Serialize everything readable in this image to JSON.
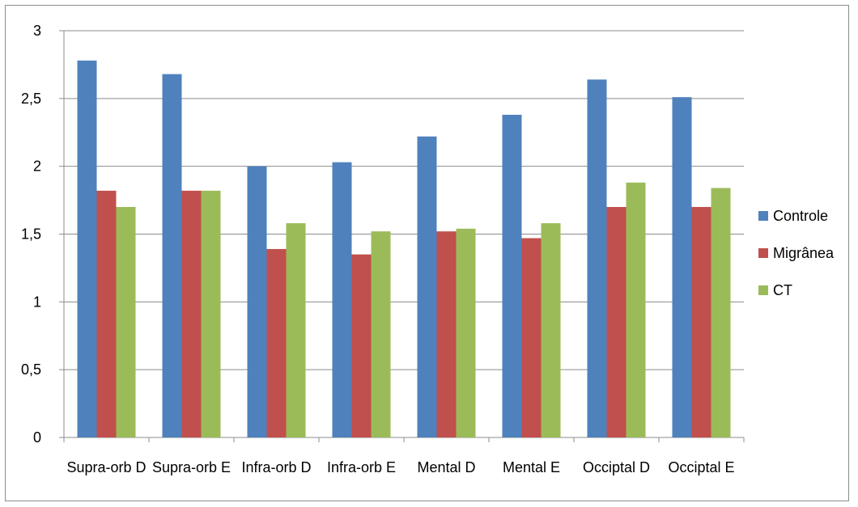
{
  "chart_data": {
    "type": "bar",
    "categories": [
      "Supra-orb D",
      "Supra-orb E",
      "Infra-orb D",
      "Infra-orb E",
      "Mental D",
      "Mental E",
      "Occiptal D",
      "Occiptal E"
    ],
    "series": [
      {
        "name": "Controle",
        "color": "#4F81BD",
        "values": [
          2.78,
          2.68,
          2.0,
          2.03,
          2.22,
          2.38,
          2.64,
          2.51
        ]
      },
      {
        "name": "Migrânea",
        "color": "#C0504D",
        "values": [
          1.82,
          1.82,
          1.39,
          1.35,
          1.52,
          1.47,
          1.7,
          1.7
        ]
      },
      {
        "name": "CT",
        "color": "#9BBB59",
        "values": [
          1.7,
          1.82,
          1.58,
          1.52,
          1.54,
          1.58,
          1.88,
          1.84
        ]
      }
    ],
    "yticks": [
      "0",
      "0,5",
      "1",
      "1,5",
      "2",
      "2,5",
      "3"
    ],
    "ylim": [
      0,
      3
    ],
    "grid": true,
    "legend": "right"
  }
}
